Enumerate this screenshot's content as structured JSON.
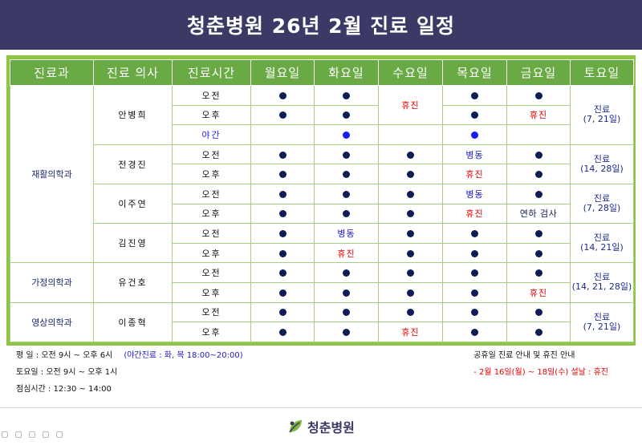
{
  "title": "청춘병원 26년 2월 진료 일정",
  "headers": [
    "진료과",
    "진료 의사",
    "진료시간",
    "월요일",
    "화요일",
    "수요일",
    "목요일",
    "금요일",
    "토요일"
  ],
  "departments": [
    "재활의학과",
    "가정의학과",
    "영상의학과"
  ],
  "doctors": [
    "안병희",
    "전경진",
    "이주연",
    "김진영",
    "유건호",
    "이종혁"
  ],
  "sessions": {
    "am": "오전",
    "pm": "오후",
    "night": "야간"
  },
  "cells": {
    "closed": "휴진",
    "ward": "병동",
    "endoscopy": "연하 검사"
  },
  "saturday": {
    "d1": [
      "진료",
      "(7, 21일)"
    ],
    "d2": [
      "진료",
      "(14, 28일)"
    ],
    "d3": [
      "진료",
      "(7, 28일)"
    ],
    "d4": [
      "진료",
      "(14, 21일)"
    ],
    "d5": [
      "진료",
      "(14, 21, 28일)"
    ],
    "d6": [
      "진료",
      "(7, 21일)"
    ]
  },
  "notes": {
    "weekday": "평    일 : 오전 9시 ~ 오후 6시",
    "night": "(야간진료 : 화, 목 18:00~20:00)",
    "saturday": "토요일 : 오전 9시 ~ 오후 1시",
    "lunch": "점심시간 : 12:30 ~ 14:00",
    "holiday_title": "공휴일 진료 안내 및 휴진 안내",
    "holiday_text": "- 2월 16일(월) ~ 18일(수) 설날 : 휴진"
  },
  "logo_text": "청춘병원",
  "colors": {
    "header": "#3b3966",
    "frame": "#8dc545",
    "th": "#6aaa45",
    "closed": "#e60000",
    "dot": "#0f1d55"
  }
}
